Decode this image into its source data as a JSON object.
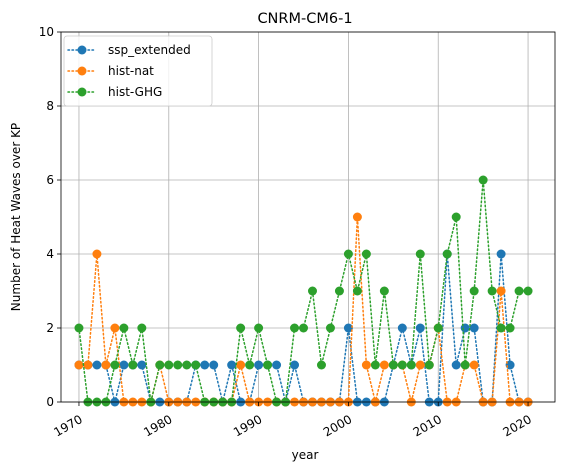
{
  "chart_data": {
    "type": "line",
    "title": "CNRM-CM6-1",
    "xlabel": "year",
    "ylabel": "Number of Heat Waves over KP",
    "xlim": [
      1968,
      2023
    ],
    "ylim": [
      0,
      10
    ],
    "xticks": [
      1970,
      1980,
      1990,
      2000,
      2010,
      2020
    ],
    "yticks": [
      0,
      2,
      4,
      6,
      8,
      10
    ],
    "grid": true,
    "legend_position": "upper left",
    "line_style": "dotted with circle markers",
    "series": [
      {
        "name": "ssp_extended",
        "color": "#1f77b4",
        "x": [
          1970,
          1971,
          1972,
          1973,
          1974,
          1975,
          1976,
          1977,
          1978,
          1979,
          1980,
          1981,
          1982,
          1983,
          1984,
          1985,
          1986,
          1987,
          1988,
          1989,
          1990,
          1991,
          1992,
          1993,
          1994,
          1995,
          1996,
          1997,
          1998,
          1999,
          2000,
          2001,
          2002,
          2003,
          2004,
          2005,
          2006,
          2007,
          2008,
          2009,
          2010,
          2011,
          2012,
          2013,
          2014,
          2015,
          2016,
          2017,
          2018,
          2019,
          2020
        ],
        "y": [
          1,
          1,
          1,
          1,
          0,
          1,
          1,
          1,
          0,
          0,
          0,
          0,
          0,
          1,
          1,
          1,
          0,
          1,
          0,
          0,
          1,
          1,
          1,
          0,
          1,
          0,
          0,
          0,
          0,
          0,
          2,
          0,
          0,
          0,
          0,
          1,
          2,
          1,
          2,
          0,
          0,
          4,
          1,
          2,
          2,
          0,
          0,
          4,
          1,
          0,
          0
        ]
      },
      {
        "name": "hist-nat",
        "color": "#ff7f0e",
        "x": [
          1970,
          1971,
          1972,
          1973,
          1974,
          1975,
          1976,
          1977,
          1978,
          1979,
          1980,
          1981,
          1982,
          1983,
          1984,
          1985,
          1986,
          1987,
          1988,
          1989,
          1990,
          1991,
          1992,
          1993,
          1994,
          1995,
          1996,
          1997,
          1998,
          1999,
          2000,
          2001,
          2002,
          2003,
          2004,
          2005,
          2006,
          2007,
          2008,
          2009,
          2010,
          2011,
          2012,
          2013,
          2014,
          2015,
          2016,
          2017,
          2018,
          2019,
          2020
        ],
        "y": [
          1,
          1,
          4,
          1,
          2,
          0,
          0,
          0,
          0,
          1,
          0,
          0,
          0,
          0,
          0,
          0,
          0,
          0,
          1,
          0,
          0,
          0,
          0,
          0,
          0,
          0,
          0,
          0,
          0,
          0,
          0,
          5,
          1,
          0,
          1,
          1,
          1,
          0,
          1,
          1,
          2,
          0,
          0,
          1,
          1,
          0,
          0,
          3,
          0,
          0,
          0
        ]
      },
      {
        "name": "hist-GHG",
        "color": "#2ca02c",
        "x": [
          1970,
          1971,
          1972,
          1973,
          1974,
          1975,
          1976,
          1977,
          1978,
          1979,
          1980,
          1981,
          1982,
          1983,
          1984,
          1985,
          1986,
          1987,
          1988,
          1989,
          1990,
          1991,
          1992,
          1993,
          1994,
          1995,
          1996,
          1997,
          1998,
          1999,
          2000,
          2001,
          2002,
          2003,
          2004,
          2005,
          2006,
          2007,
          2008,
          2009,
          2010,
          2011,
          2012,
          2013,
          2014,
          2015,
          2016,
          2017,
          2018,
          2019,
          2020
        ],
        "y": [
          2,
          0,
          0,
          0,
          1,
          2,
          1,
          2,
          0,
          1,
          1,
          1,
          1,
          1,
          0,
          0,
          0,
          0,
          2,
          1,
          2,
          1,
          0,
          0,
          2,
          2,
          3,
          1,
          2,
          3,
          4,
          3,
          4,
          1,
          3,
          1,
          1,
          1,
          4,
          1,
          2,
          4,
          5,
          1,
          3,
          6,
          3,
          2,
          2,
          3,
          3
        ]
      }
    ]
  }
}
